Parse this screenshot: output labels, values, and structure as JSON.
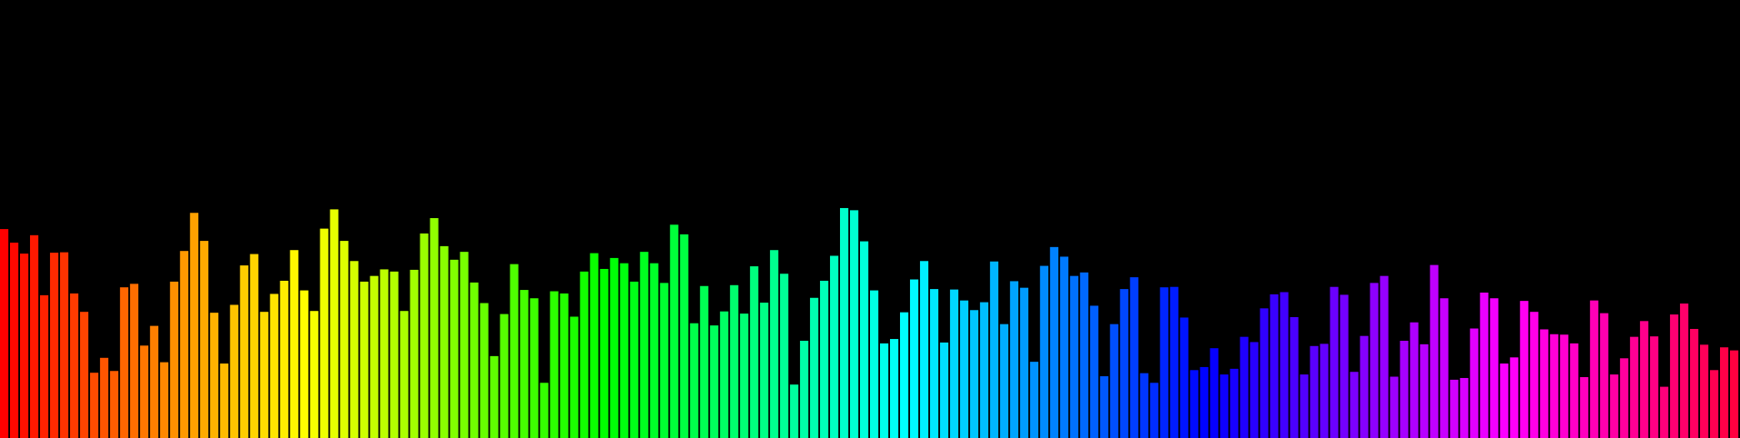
{
  "visualizer": {
    "background": "#000000",
    "bar_count": 174,
    "levels": [
      0.477,
      0.446,
      0.421,
      0.463,
      0.326,
      0.423,
      0.424,
      0.33,
      0.288,
      0.149,
      0.183,
      0.153,
      0.344,
      0.352,
      0.211,
      0.256,
      0.173,
      0.357,
      0.427,
      0.514,
      0.45,
      0.286,
      0.17,
      0.304,
      0.394,
      0.42,
      0.288,
      0.329,
      0.359,
      0.429,
      0.337,
      0.29,
      0.478,
      0.522,
      0.45,
      0.404,
      0.357,
      0.37,
      0.385,
      0.38,
      0.29,
      0.384,
      0.467,
      0.502,
      0.438,
      0.407,
      0.425,
      0.355,
      0.308,
      0.187,
      0.283,
      0.397,
      0.338,
      0.319,
      0.126,
      0.335,
      0.33,
      0.277,
      0.38,
      0.422,
      0.386,
      0.411,
      0.399,
      0.357,
      0.425,
      0.399,
      0.354,
      0.487,
      0.465,
      0.262,
      0.347,
      0.257,
      0.289,
      0.349,
      0.284,
      0.392,
      0.309,
      0.429,
      0.375,
      0.122,
      0.222,
      0.32,
      0.359,
      0.416,
      0.525,
      0.52,
      0.449,
      0.337,
      0.216,
      0.226,
      0.287,
      0.362,
      0.404,
      0.34,
      0.218,
      0.339,
      0.314,
      0.292,
      0.31,
      0.403,
      0.26,
      0.358,
      0.343,
      0.174,
      0.393,
      0.436,
      0.414,
      0.37,
      0.378,
      0.302,
      0.141,
      0.26,
      0.34,
      0.367,
      0.148,
      0.126,
      0.344,
      0.345,
      0.275,
      0.155,
      0.162,
      0.205,
      0.145,
      0.158,
      0.231,
      0.219,
      0.296,
      0.328,
      0.333,
      0.276,
      0.145,
      0.21,
      0.215,
      0.345,
      0.327,
      0.151,
      0.233,
      0.354,
      0.37,
      0.14,
      0.222,
      0.264,
      0.214,
      0.395,
      0.319,
      0.133,
      0.137,
      0.25,
      0.332,
      0.319,
      0.17,
      0.184,
      0.313,
      0.288,
      0.248,
      0.237,
      0.236,
      0.216,
      0.139,
      0.314,
      0.285,
      0.145,
      0.182,
      0.231,
      0.267,
      0.232,
      0.117,
      0.282,
      0.307,
      0.249,
      0.213,
      0.155,
      0.207,
      0.2
    ],
    "color_start": "#ff0000",
    "color_end": "#ff0040",
    "hue_start": 0,
    "hue_end": 345
  }
}
